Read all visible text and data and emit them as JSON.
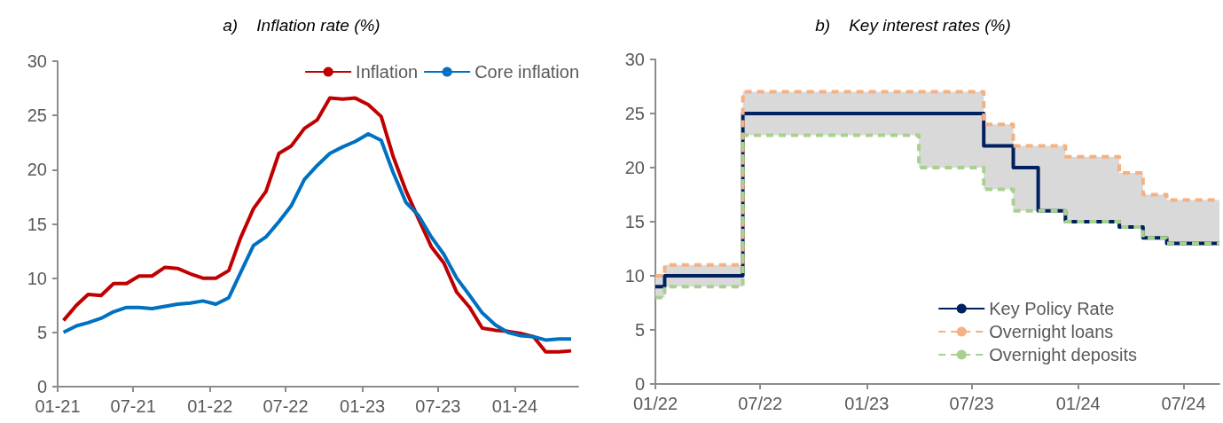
{
  "chart_data": [
    {
      "type": "line",
      "title": "a)    Inflation rate (%)",
      "x": [
        "2021-01-15",
        "2021-02-15",
        "2021-03-15",
        "2021-04-15",
        "2021-05-15",
        "2021-06-15",
        "2021-07-15",
        "2021-08-15",
        "2021-09-15",
        "2021-10-15",
        "2021-11-15",
        "2021-12-15",
        "2022-01-15",
        "2022-02-15",
        "2022-03-15",
        "2022-04-15",
        "2022-05-15",
        "2022-06-15",
        "2022-07-15",
        "2022-08-15",
        "2022-09-15",
        "2022-10-15",
        "2022-11-15",
        "2022-12-15",
        "2023-01-15",
        "2023-02-15",
        "2023-03-15",
        "2023-04-15",
        "2023-05-15",
        "2023-06-15",
        "2023-07-15",
        "2023-08-15",
        "2023-09-15",
        "2023-10-15",
        "2023-11-15",
        "2023-12-15",
        "2024-01-15",
        "2024-02-15",
        "2024-03-15",
        "2024-04-15",
        "2024-05-15"
      ],
      "series": [
        {
          "name": "Inflation",
          "color": "#c00000",
          "values": [
            6.1,
            7.5,
            8.5,
            8.4,
            9.5,
            9.5,
            10.2,
            10.2,
            11.0,
            10.9,
            10.4,
            10.0,
            10.0,
            10.7,
            13.7,
            16.4,
            18.0,
            21.5,
            22.2,
            23.8,
            24.6,
            26.6,
            26.5,
            26.6,
            26.0,
            24.9,
            21.3,
            18.1,
            15.5,
            12.9,
            11.4,
            8.7,
            7.3,
            5.4,
            5.2,
            5.1,
            4.9,
            4.6,
            3.2,
            3.2,
            3.3
          ]
        },
        {
          "name": "Core inflation",
          "color": "#0070c0",
          "values": [
            5.0,
            5.6,
            5.9,
            6.3,
            6.9,
            7.3,
            7.3,
            7.2,
            7.4,
            7.6,
            7.7,
            7.9,
            7.6,
            8.2,
            10.5,
            13.0,
            13.8,
            15.2,
            16.7,
            19.1,
            20.4,
            21.5,
            22.1,
            22.6,
            23.3,
            22.7,
            19.8,
            17.0,
            15.8,
            13.8,
            12.2,
            10.0,
            8.4,
            6.8,
            5.7,
            5.0,
            4.7,
            4.6,
            4.3,
            4.4,
            4.4
          ]
        }
      ],
      "xlim": [
        "2021-01-01",
        "2024-06-01"
      ],
      "xticks": [
        {
          "value": "2021-01-01",
          "label": "01-21"
        },
        {
          "value": "2021-07-01",
          "label": "07-21"
        },
        {
          "value": "2022-01-01",
          "label": "01-22"
        },
        {
          "value": "2022-07-01",
          "label": "07-22"
        },
        {
          "value": "2023-01-01",
          "label": "01-23"
        },
        {
          "value": "2023-07-01",
          "label": "07-23"
        },
        {
          "value": "2024-01-01",
          "label": "01-24"
        }
      ],
      "ylim": [
        0,
        30
      ],
      "yticks": [
        0,
        5,
        10,
        15,
        20,
        25,
        30
      ],
      "grid": false,
      "legend": "top right",
      "line_style": "solid",
      "marker": "none"
    },
    {
      "type": "step",
      "title": "b)    Key interest rates (%)",
      "x": [
        "2022-01-01",
        "2022-01-17",
        "2022-06-01",
        "2023-04-01",
        "2023-07-22",
        "2023-09-11",
        "2023-10-24",
        "2023-12-10",
        "2024-03-12",
        "2024-04-22",
        "2024-06-02",
        "2024-09-01"
      ],
      "series": [
        {
          "name": "Key Policy Rate",
          "color": "#002060",
          "line_style": "solid",
          "values": [
            9,
            10,
            25,
            25,
            22,
            20,
            16,
            15,
            14.5,
            13.5,
            13,
            13
          ],
          "lower": [
            8,
            9,
            23,
            20,
            18,
            16,
            16,
            15,
            14.5,
            13.5,
            13,
            13
          ],
          "upper": [
            10,
            11,
            27,
            27,
            24,
            22,
            22,
            21,
            19.5,
            17.5,
            17,
            17
          ]
        },
        {
          "name": "Overnight loans",
          "color": "#f4b183",
          "line_style": "dashed",
          "values": [
            10,
            11,
            27,
            27,
            24,
            22,
            22,
            21,
            19.5,
            17.5,
            17,
            17
          ]
        },
        {
          "name": "Overnight deposits",
          "color": "#a9d18e",
          "line_style": "dashed",
          "values": [
            8,
            9,
            23,
            20,
            18,
            16,
            16,
            15,
            14.5,
            13.5,
            13,
            13
          ]
        }
      ],
      "xlim": [
        "2022-01-01",
        "2024-09-01"
      ],
      "xticks": [
        {
          "value": "2022-01-01",
          "label": "01/22"
        },
        {
          "value": "2022-07-01",
          "label": "07/22"
        },
        {
          "value": "2023-01-01",
          "label": "01/23"
        },
        {
          "value": "2023-07-01",
          "label": "07/23"
        },
        {
          "value": "2024-01-01",
          "label": "01/24"
        },
        {
          "value": "2024-07-01",
          "label": "07/24"
        }
      ],
      "ylim": [
        0,
        30
      ],
      "yticks": [
        0,
        5,
        10,
        15,
        20,
        25,
        30
      ],
      "grid": false,
      "legend": "bottom right",
      "marker": "none"
    }
  ]
}
